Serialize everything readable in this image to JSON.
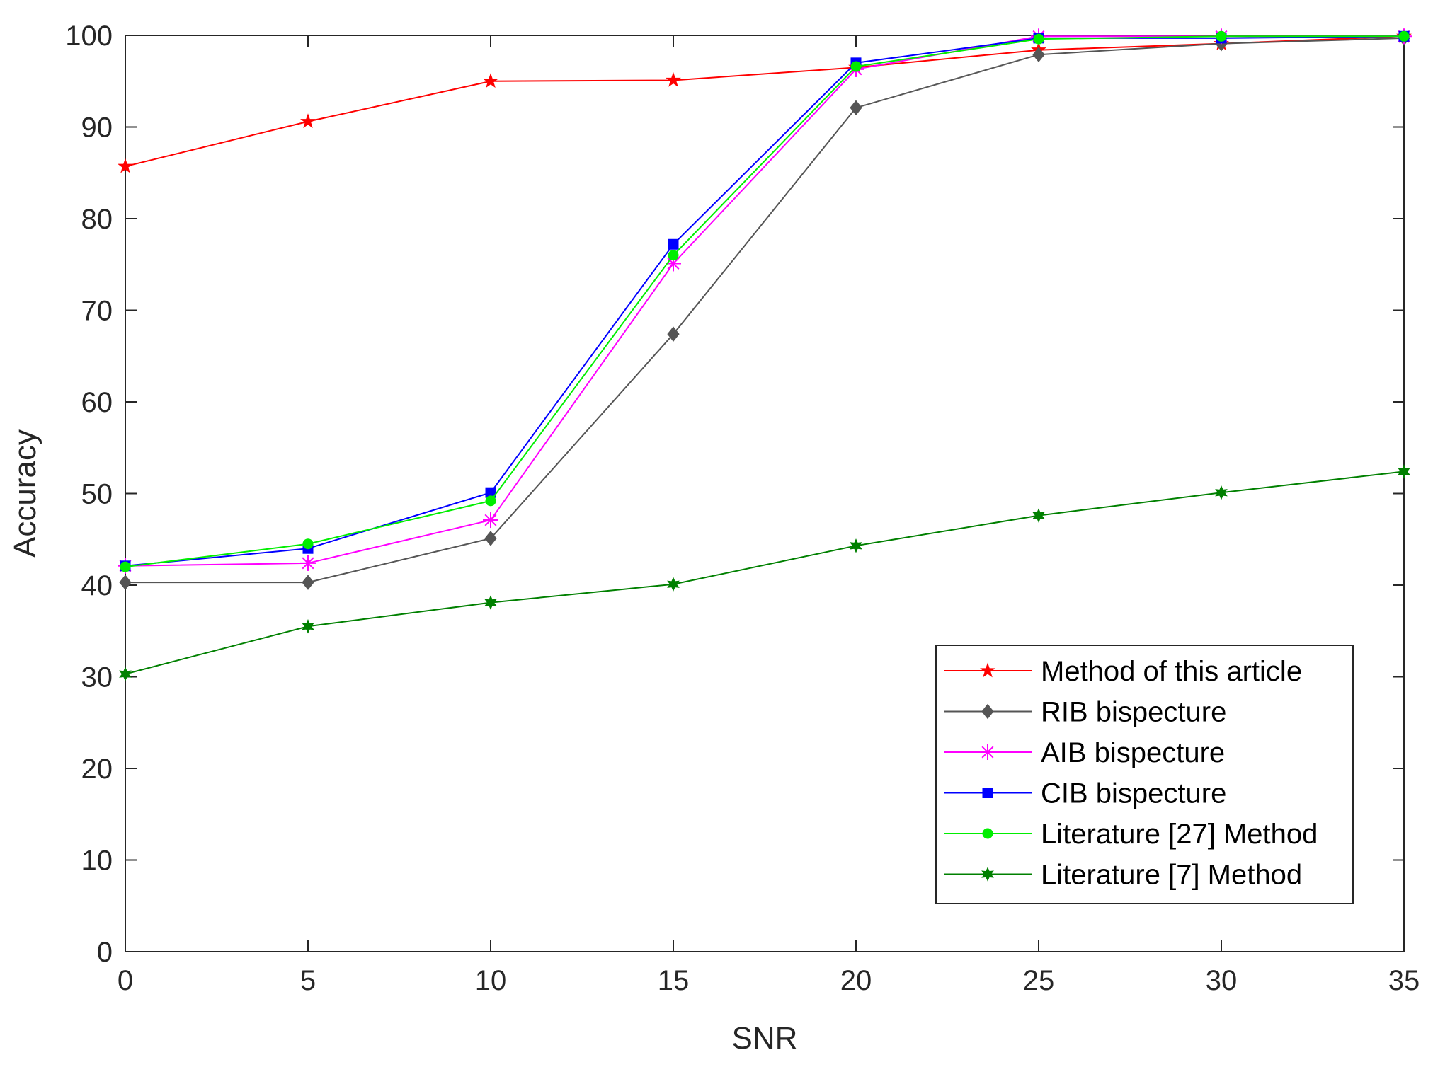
{
  "chart_data": {
    "type": "line",
    "title": "",
    "xlabel": "SNR",
    "ylabel": "Accuracy",
    "xlim": [
      0,
      35
    ],
    "ylim": [
      0,
      100
    ],
    "xticks": [
      0,
      5,
      10,
      15,
      20,
      25,
      30,
      35
    ],
    "yticks": [
      0,
      10,
      20,
      30,
      40,
      50,
      60,
      70,
      80,
      90,
      100
    ],
    "xtick_labels": [
      "0",
      "5",
      "10",
      "15",
      "20",
      "25",
      "30",
      "35"
    ],
    "ytick_labels": [
      "0",
      "10",
      "20",
      "30",
      "40",
      "50",
      "60",
      "70",
      "80",
      "90",
      "100"
    ],
    "grid": false,
    "legend_position": "bottom-right",
    "x": [
      0,
      5,
      10,
      15,
      20,
      25,
      30,
      35
    ],
    "series": [
      {
        "name": "Method of this article",
        "color": "#ff0000",
        "marker": "star5",
        "values": [
          85.7,
          90.6,
          95.0,
          95.1,
          96.5,
          98.4,
          99.1,
          99.9
        ]
      },
      {
        "name": "RIB bispecture",
        "color": "#555555",
        "marker": "diamond",
        "values": [
          40.3,
          40.3,
          45.1,
          67.4,
          92.1,
          97.9,
          99.1,
          99.7
        ]
      },
      {
        "name": "AIB bispecture",
        "color": "#ff00ff",
        "marker": "asterisk",
        "values": [
          42.1,
          42.4,
          47.1,
          75.1,
          96.3,
          99.9,
          99.9,
          99.9
        ]
      },
      {
        "name": "CIB bispecture",
        "color": "#0000ff",
        "marker": "square",
        "values": [
          42.1,
          44.0,
          50.1,
          77.2,
          97.0,
          99.7,
          99.7,
          99.9
        ]
      },
      {
        "name": "Literature [27] Method",
        "color": "#00ee00",
        "marker": "circle",
        "values": [
          42.0,
          44.5,
          49.2,
          76.0,
          96.6,
          99.6,
          99.9,
          99.9
        ]
      },
      {
        "name": "Literature [7] Method",
        "color": "#008000",
        "marker": "star6",
        "values": [
          30.3,
          35.5,
          38.1,
          40.1,
          44.3,
          47.6,
          50.1,
          52.4
        ]
      }
    ]
  }
}
